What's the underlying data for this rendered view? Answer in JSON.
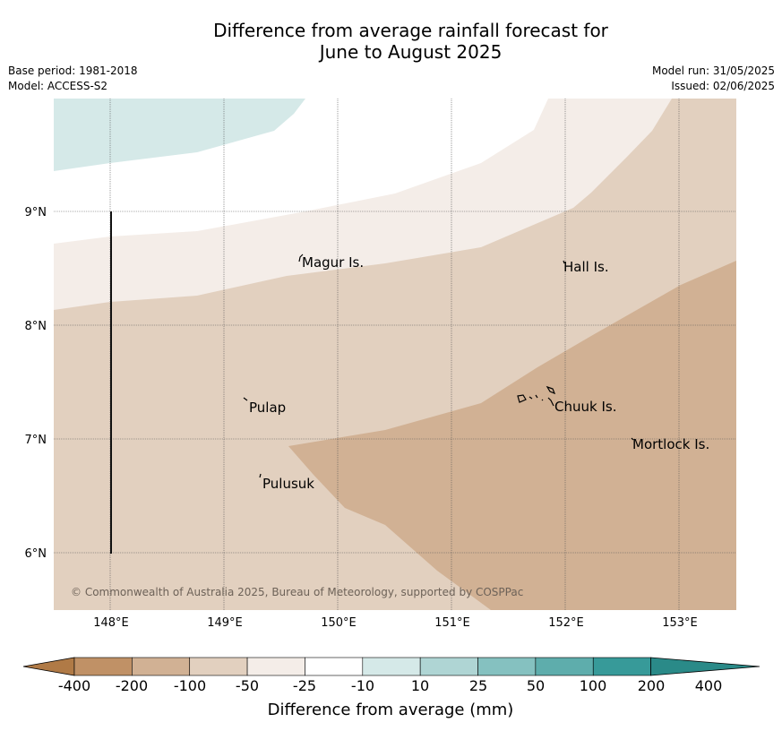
{
  "title_line1": "Difference from average rainfall forecast for",
  "title_line2": "June to August 2025",
  "meta": {
    "base_period": "Base period: 1981-2018",
    "model": "Model: ACCESS-S2",
    "model_run": "Model run: 31/05/2025",
    "issued": "Issued: 02/06/2025"
  },
  "map": {
    "lat_labels": [
      "9°N",
      "8°N",
      "7°N",
      "6°N"
    ],
    "lon_labels": [
      "148°E",
      "149°E",
      "150°E",
      "151°E",
      "152°E",
      "153°E"
    ],
    "places": [
      "Magur Is.",
      "Hall Is.",
      "Pulap",
      "Chuuk Is.",
      "Mortlock Is.",
      "Pulusuk"
    ],
    "copyright": "© Commonwealth of Australia 2025, Bureau of Meteorology, supported by COSPPac"
  },
  "colorbar": {
    "labels": [
      "-400",
      "-200",
      "-100",
      "-50",
      "-25",
      "-10",
      "10",
      "25",
      "50",
      "100",
      "200",
      "400"
    ],
    "colors": [
      "#b07a46",
      "#c09166",
      "#d1b194",
      "#e2d0bf",
      "#f4ede8",
      "#ffffff",
      "#d5e9e8",
      "#afd5d4",
      "#85c1c0",
      "#5eadac",
      "#379a99",
      "#2a8a88"
    ],
    "title": "Difference from average (mm)"
  }
}
